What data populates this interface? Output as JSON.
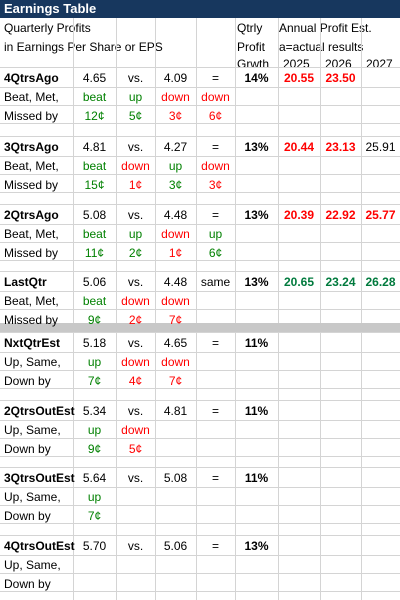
{
  "title": "Earnings Table",
  "header": {
    "line1": "Quarterly Profits",
    "line2": "in Earnings Per Share or EPS",
    "qtrly1": "Qtrly",
    "qtrly2": "Profit",
    "qtrly3": "Grwth",
    "annual1": "Annual Profit Est.",
    "annual2": "a=actual results",
    "year1": "2025",
    "year2": "2026",
    "year3": "2027"
  },
  "rows": [
    {
      "label": "4QtrsAgo",
      "eps": "4.65",
      "vs": "vs.",
      "prior": "4.09",
      "eq": "=",
      "growth": "14%",
      "est1": "20.55",
      "est2": "23.50",
      "est3": "",
      "sub1": "Beat, Met,",
      "sub2": "Missed by",
      "r1": [
        "beat",
        "up",
        "down",
        "down"
      ],
      "r2": [
        "12¢",
        "5¢",
        "3¢",
        "6¢"
      ]
    },
    {
      "label": "3QtrsAgo",
      "eps": "4.81",
      "vs": "vs.",
      "prior": "4.27",
      "eq": "=",
      "growth": "13%",
      "est1": "20.44",
      "est2": "23.13",
      "est3": "25.91",
      "sub1": "Beat, Met,",
      "sub2": "Missed by",
      "r1": [
        "beat",
        "down",
        "up",
        "down"
      ],
      "r2": [
        "15¢",
        "1¢",
        "3¢",
        "3¢"
      ]
    },
    {
      "label": "2QtrsAgo",
      "eps": "5.08",
      "vs": "vs.",
      "prior": "4.48",
      "eq": "=",
      "growth": "13%",
      "est1": "20.39",
      "est2": "22.92",
      "est3": "25.77",
      "sub1": "Beat, Met,",
      "sub2": "Missed by",
      "r1": [
        "beat",
        "up",
        "down",
        "up"
      ],
      "r2": [
        "11¢",
        "2¢",
        "1¢",
        "6¢"
      ]
    },
    {
      "label": "LastQtr",
      "eps": "5.06",
      "vs": "vs.",
      "prior": "4.48",
      "eq": "same",
      "growth": "13%",
      "est1": "20.65",
      "est2": "23.24",
      "est3": "26.28",
      "sub1": "Beat, Met,",
      "sub2": "Missed by",
      "r1": [
        "beat",
        "down",
        "down",
        ""
      ],
      "r2": [
        "9¢",
        "2¢",
        "7¢",
        ""
      ]
    },
    {
      "label": "NxtQtrEst",
      "eps": "5.18",
      "vs": "vs.",
      "prior": "4.65",
      "eq": "=",
      "growth": "11%",
      "sub1": "Up, Same,",
      "sub2": "Down by",
      "r1": [
        "up",
        "down",
        "down"
      ],
      "r2": [
        "7¢",
        "4¢",
        "7¢"
      ]
    },
    {
      "label": "2QtrsOutEst",
      "eps": "5.34",
      "vs": "vs.",
      "prior": "4.81",
      "eq": "=",
      "growth": "11%",
      "sub1": "Up, Same,",
      "sub2": "Down by",
      "r1": [
        "up",
        "down",
        ""
      ],
      "r2": [
        "9¢",
        "5¢",
        ""
      ]
    },
    {
      "label": "3QtrsOutEst",
      "eps": "5.64",
      "vs": "vs.",
      "prior": "5.08",
      "eq": "=",
      "growth": "11%",
      "sub1": "Up, Same,",
      "sub2": "Down by",
      "r1": [
        "up",
        "",
        ""
      ],
      "r2": [
        "7¢",
        "",
        ""
      ]
    },
    {
      "label": "4QtrsOutEst",
      "eps": "5.70",
      "vs": "vs.",
      "prior": "5.06",
      "eq": "=",
      "growth": "13%",
      "sub1": "Up, Same,",
      "sub2": "Down by",
      "r1": [
        "",
        "",
        ""
      ],
      "r2": [
        "",
        "",
        ""
      ]
    }
  ]
}
